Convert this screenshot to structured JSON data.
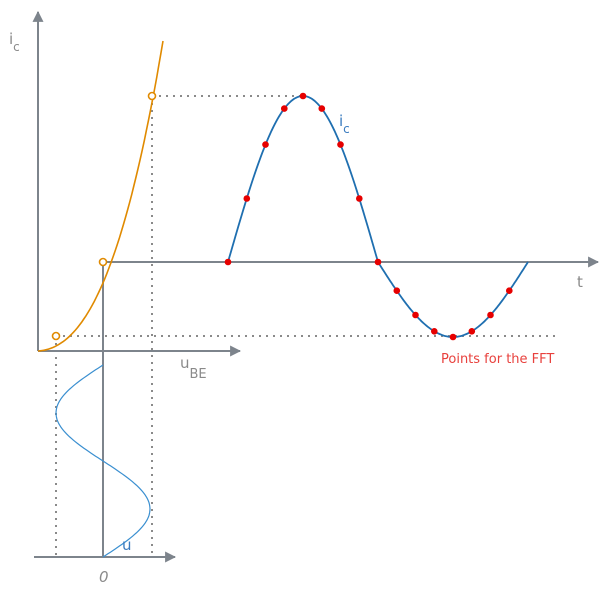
{
  "labels": {
    "ic_axis": "i",
    "ic_axis_sub": "c",
    "ic_curve": "i",
    "ic_curve_sub": "c",
    "t_axis": "t",
    "ube_axis": "u",
    "ube_axis_sub": "BE",
    "u_curve": "u",
    "origin": "0",
    "fft_note": "Points for the FFT"
  },
  "colors": {
    "axis": "#7d848c",
    "dotted": "#8a8a8a",
    "characteristic": "#e08a00",
    "signal": "#1f6fb0",
    "input_signal": "#3a8fd0",
    "fft_points": "#e60000",
    "note": "#e8413d"
  },
  "fft": {
    "samples": 16,
    "waveform": "sine"
  }
}
